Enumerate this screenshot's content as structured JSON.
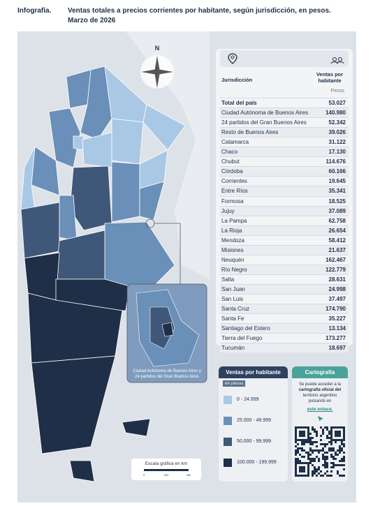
{
  "header": {
    "label": "Infografía.",
    "title": "Ventas totales a precios corrientes por habitante, según jurisdicción, en pesos.",
    "date": "Marzo de 2026"
  },
  "map": {
    "compass": "N",
    "inset_caption": [
      "Ciudad Autónoma de Buenos Aires y",
      "24 partidos del Gran Buenos Aires"
    ],
    "scale": {
      "title": "Escala gráfica en km",
      "ticks": [
        "0",
        "200",
        "400"
      ]
    }
  },
  "table": {
    "columns": [
      "Jurisdicción",
      "Ventas por habitante"
    ],
    "unit": "Pesos",
    "rows": [
      [
        "Total del país",
        "53.027"
      ],
      [
        "Ciudad Autónoma de Buenos Aires",
        "140.980"
      ],
      [
        "24 partidos del Gran Buenos Aires",
        "52.342"
      ],
      [
        "Resto de Buenos Aires",
        "39.026"
      ],
      [
        "Catamarca",
        "31.122"
      ],
      [
        "Chaco",
        "17.130"
      ],
      [
        "Chubut",
        "114.676"
      ],
      [
        "Córdoba",
        "60.166"
      ],
      [
        "Corrientes",
        "19.645"
      ],
      [
        "Entre Ríos",
        "35.341"
      ],
      [
        "Formosa",
        "18.525"
      ],
      [
        "Jujuy",
        "37.089"
      ],
      [
        "La Pampa",
        "62.758"
      ],
      [
        "La Rioja",
        "26.654"
      ],
      [
        "Mendoza",
        "58.412"
      ],
      [
        "Misiones",
        "21.637"
      ],
      [
        "Neuquén",
        "162.467"
      ],
      [
        "Río Negro",
        "122.779"
      ],
      [
        "Salta",
        "28.631"
      ],
      [
        "San Juan",
        "24.998"
      ],
      [
        "San Luis",
        "37.497"
      ],
      [
        "Santa Cruz",
        "174.790"
      ],
      [
        "Santa Fe",
        "35.227"
      ],
      [
        "Santiago del Estero",
        "13.134"
      ],
      [
        "Tierra del Fuego",
        "173.277"
      ],
      [
        "Tucumán",
        "18.697"
      ]
    ]
  },
  "legend": {
    "title": "Ventas por habitante",
    "subtitle": "en pesos",
    "items": [
      {
        "label": "0 - 24.999",
        "color": "#a9c8e6"
      },
      {
        "label": "25.000 - 49.999",
        "color": "#6a8fb8"
      },
      {
        "label": "50.000 - 99.999",
        "color": "#3f587a"
      },
      {
        "label": "100.000 - 199.999",
        "color": "#1f2f47"
      }
    ]
  },
  "cartography": {
    "title": "Cartografía",
    "text": [
      "Se puede acceder a la",
      "cartografía oficial del",
      "territorio argentino",
      "pulsando en"
    ],
    "link": "este enlace."
  }
}
